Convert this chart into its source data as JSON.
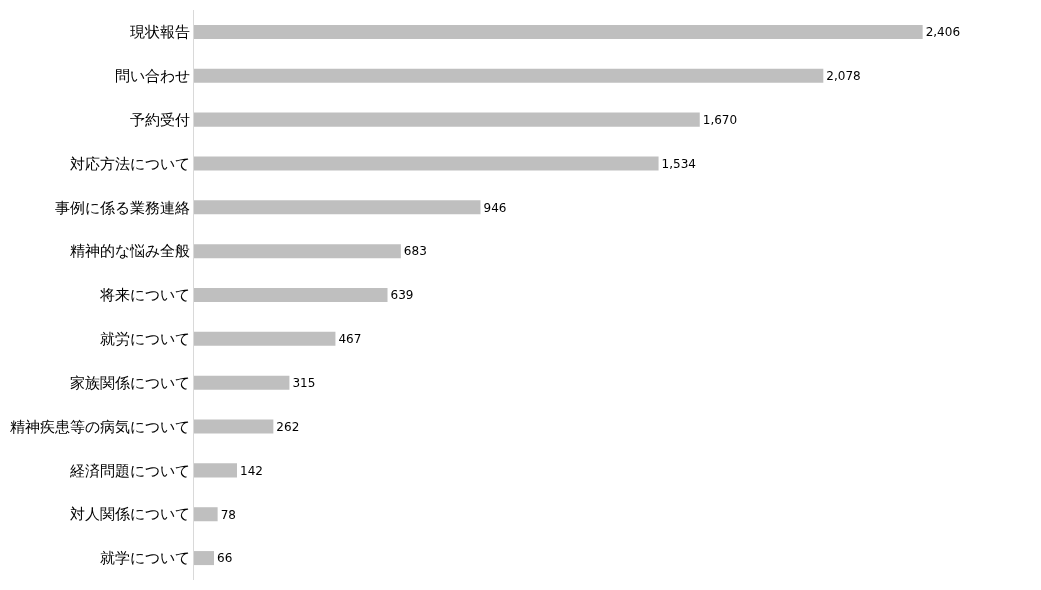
{
  "chart_data": {
    "type": "bar",
    "orientation": "horizontal",
    "categories": [
      "現状報告",
      "問い合わせ",
      "予約受付",
      "対応方法について",
      "事例に係る業務連絡",
      "精神的な悩み全般",
      "将来について",
      "就労について",
      "家族関係について",
      "精神疾患等の病気について",
      "経済問題について",
      "対人関係について",
      "就学について"
    ],
    "values": [
      2406,
      2078,
      1670,
      1534,
      946,
      683,
      639,
      467,
      315,
      262,
      142,
      78,
      66
    ],
    "value_labels": [
      "2,406",
      "2,078",
      "1,670",
      "1,534",
      "946",
      "683",
      "639",
      "467",
      "315",
      "262",
      "142",
      "78",
      "66"
    ],
    "color": "#bfbfbf"
  }
}
